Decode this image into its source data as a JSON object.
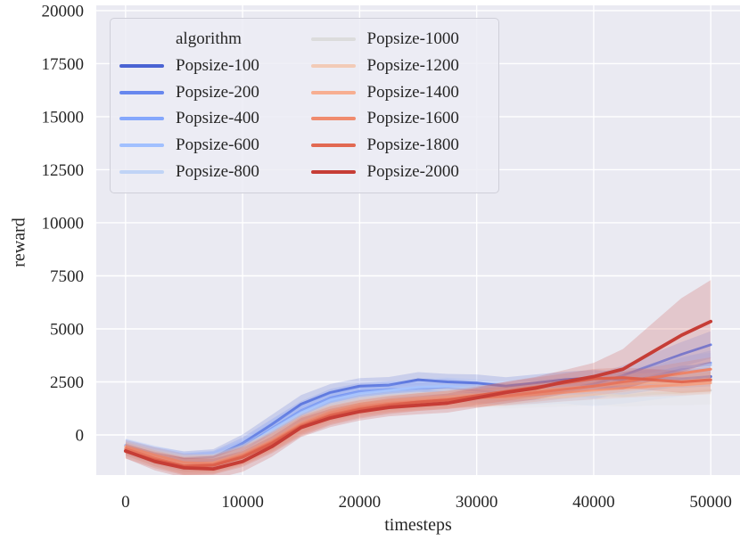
{
  "figure": {
    "background": "#ffffff",
    "plot_background": "#eaeaf2",
    "grid_color": "#ffffff",
    "text_color": "#262626"
  },
  "chart_data": {
    "type": "line",
    "title": "",
    "xlabel": "timesteps",
    "ylabel": "reward",
    "legend_title": "algorithm",
    "legend_position": "upper left",
    "legend_columns": 2,
    "grid": true,
    "xlim": [
      -2500,
      52500
    ],
    "ylim": [
      -1890,
      20250
    ],
    "xticks": [
      0,
      10000,
      20000,
      30000,
      40000,
      50000
    ],
    "yticks": [
      0,
      2500,
      5000,
      7500,
      10000,
      12500,
      15000,
      17500,
      20000
    ],
    "x": [
      0,
      2500,
      5000,
      7500,
      10000,
      12500,
      15000,
      17500,
      20000,
      22500,
      25000,
      27500,
      30000,
      32500,
      35000,
      37500,
      40000,
      42500,
      45000,
      47500,
      50000
    ],
    "series": [
      {
        "name": "Popsize-100",
        "color": "#4a63d3",
        "width": 3.0,
        "values": [
          -500,
          -900,
          -1150,
          -1050,
          -400,
          500,
          1450,
          2000,
          2300,
          2350,
          2600,
          2500,
          2450,
          2300,
          2450,
          2600,
          2700,
          2600,
          2700,
          2650,
          2750
        ],
        "band": [
          300,
          350,
          380,
          380,
          420,
          450,
          430,
          400,
          380,
          380,
          360,
          380,
          400,
          420,
          400,
          380,
          360,
          380,
          400,
          430,
          460
        ]
      },
      {
        "name": "Popsize-200",
        "color": "#6787ee",
        "width": 2.8,
        "values": [
          -550,
          -950,
          -1250,
          -1150,
          -550,
          300,
          1150,
          1750,
          2050,
          2150,
          2150,
          2250,
          2100,
          2000,
          2050,
          2150,
          2400,
          2800,
          3300,
          3800,
          4250
        ],
        "band": [
          300,
          360,
          390,
          390,
          430,
          450,
          440,
          420,
          400,
          390,
          390,
          400,
          410,
          420,
          410,
          400,
          430,
          470,
          520,
          580,
          640
        ]
      },
      {
        "name": "Popsize-400",
        "color": "#85a7fc",
        "width": 2.7,
        "values": [
          -600,
          -1000,
          -1300,
          -1200,
          -700,
          150,
          950,
          1550,
          1850,
          2000,
          2100,
          2000,
          1950,
          1850,
          1900,
          2000,
          2100,
          2400,
          2750,
          3100,
          3400
        ],
        "band": [
          300,
          360,
          400,
          400,
          430,
          450,
          440,
          420,
          400,
          390,
          390,
          400,
          420,
          430,
          420,
          410,
          420,
          450,
          490,
          540,
          580
        ]
      },
      {
        "name": "Popsize-600",
        "color": "#a1c0ff",
        "width": 2.7,
        "values": [
          -480,
          -880,
          -1200,
          -1150,
          -650,
          250,
          1050,
          1650,
          1950,
          2100,
          2250,
          2300,
          2200,
          2100,
          2200,
          2300,
          2250,
          2500,
          2900,
          3200,
          3300
        ],
        "band": [
          320,
          380,
          410,
          410,
          440,
          460,
          450,
          430,
          410,
          400,
          400,
          410,
          420,
          430,
          420,
          410,
          430,
          460,
          500,
          540,
          570
        ]
      },
      {
        "name": "Popsize-800",
        "color": "#c0d4f6",
        "width": 2.7,
        "values": [
          -650,
          -1050,
          -1350,
          -1300,
          -800,
          -100,
          750,
          1350,
          1650,
          1850,
          1950,
          2000,
          1900,
          1800,
          1850,
          1900,
          1800,
          1950,
          2150,
          2350,
          2550
        ],
        "band": [
          320,
          380,
          420,
          420,
          450,
          470,
          450,
          430,
          420,
          410,
          410,
          420,
          430,
          440,
          430,
          430,
          440,
          470,
          500,
          530,
          560
        ]
      },
      {
        "name": "Popsize-1000",
        "color": "#dcdcdc",
        "width": 2.7,
        "values": [
          -700,
          -1100,
          -1400,
          -1350,
          -900,
          -250,
          600,
          1150,
          1500,
          1650,
          1750,
          1800,
          1750,
          1700,
          1750,
          1800,
          1900,
          1850,
          1950,
          2000,
          2100
        ],
        "band": [
          330,
          390,
          430,
          430,
          460,
          480,
          460,
          440,
          430,
          420,
          420,
          430,
          440,
          450,
          450,
          460,
          480,
          520,
          560,
          610,
          660
        ]
      },
      {
        "name": "Popsize-1200",
        "color": "#f2cbb7",
        "width": 2.7,
        "values": [
          -600,
          -1000,
          -1350,
          -1300,
          -900,
          -250,
          550,
          1100,
          1450,
          1600,
          1700,
          1800,
          1900,
          2000,
          2100,
          2200,
          2300,
          2400,
          2450,
          2400,
          2500
        ],
        "band": [
          310,
          370,
          410,
          410,
          440,
          460,
          450,
          430,
          420,
          410,
          410,
          420,
          430,
          430,
          420,
          420,
          430,
          450,
          480,
          510,
          540
        ]
      },
      {
        "name": "Popsize-1400",
        "color": "#f7ae91",
        "width": 2.8,
        "values": [
          -550,
          -950,
          -1300,
          -1350,
          -950,
          -300,
          500,
          1050,
          1350,
          1500,
          1600,
          1700,
          1750,
          1800,
          1900,
          2000,
          2100,
          2200,
          2300,
          2350,
          2450
        ],
        "band": [
          310,
          370,
          410,
          420,
          450,
          470,
          450,
          430,
          420,
          410,
          410,
          420,
          430,
          430,
          430,
          420,
          430,
          450,
          480,
          500,
          530
        ]
      },
      {
        "name": "Popsize-1600",
        "color": "#f08b6e",
        "width": 3.0,
        "values": [
          -650,
          -1100,
          -1450,
          -1400,
          -1000,
          -350,
          450,
          950,
          1250,
          1450,
          1550,
          1650,
          1750,
          1850,
          2000,
          2150,
          2300,
          2500,
          2700,
          2900,
          3100
        ],
        "band": [
          320,
          380,
          420,
          430,
          450,
          470,
          460,
          440,
          420,
          410,
          410,
          420,
          430,
          440,
          440,
          440,
          450,
          470,
          500,
          530,
          560
        ]
      },
      {
        "name": "Popsize-1800",
        "color": "#e26952",
        "width": 3.2,
        "values": [
          -780,
          -1180,
          -1480,
          -1430,
          -1050,
          -400,
          400,
          900,
          1200,
          1400,
          1550,
          1650,
          1850,
          2050,
          2250,
          2450,
          2650,
          2700,
          2600,
          2500,
          2600
        ],
        "band": [
          330,
          390,
          430,
          440,
          460,
          470,
          460,
          440,
          430,
          420,
          420,
          430,
          440,
          450,
          450,
          450,
          460,
          480,
          500,
          520,
          550
        ]
      },
      {
        "name": "Popsize-2000",
        "color": "#c63d36",
        "width": 3.8,
        "values": [
          -750,
          -1250,
          -1550,
          -1600,
          -1250,
          -550,
          350,
          800,
          1100,
          1300,
          1400,
          1500,
          1750,
          2000,
          2200,
          2500,
          2750,
          3100,
          3900,
          4700,
          5350
        ],
        "band": [
          350,
          420,
          470,
          480,
          490,
          480,
          450,
          430,
          420,
          420,
          430,
          450,
          480,
          510,
          530,
          560,
          650,
          950,
          1350,
          1750,
          1950
        ]
      }
    ]
  }
}
